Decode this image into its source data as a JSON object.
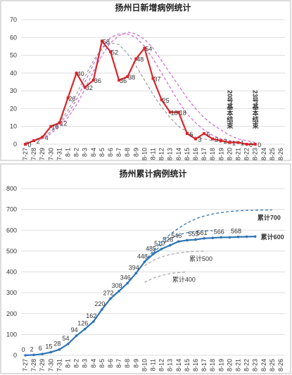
{
  "chart_data": [
    {
      "type": "line",
      "title": "扬州日新增病例统计",
      "categories": [
        "7-27",
        "7-28",
        "7-29",
        "7-30",
        "7-31",
        "8-1",
        "8-2",
        "8-3",
        "8-4",
        "8-5",
        "8-6",
        "8-7",
        "8-8",
        "8-9",
        "8-10",
        "8-11",
        "8-12",
        "8-13",
        "8-14",
        "8-15",
        "8-16",
        "8-17",
        "8-18",
        "8-19",
        "8-20",
        "8-21",
        "8-22",
        "8-23",
        "8-24",
        "8-25",
        "8-26"
      ],
      "ylim": [
        0,
        70
      ],
      "yticks": [
        0,
        10,
        20,
        30,
        40,
        50,
        60,
        70
      ],
      "grid": true,
      "series": [
        {
          "color": "#d9262b",
          "style": "solid",
          "marker": "square",
          "values": [
            0,
            2,
            4,
            10,
            12,
            26,
            40,
            32,
            36,
            58,
            52,
            36,
            38,
            48,
            54,
            37,
            25,
            18,
            18,
            6,
            3,
            6,
            3,
            2,
            1,
            1,
            0,
            0,
            null,
            null,
            null
          ]
        }
      ],
      "trend_lines": [
        {
          "color": "#cc66cc",
          "values": [
            1,
            2,
            4,
            7,
            11,
            17,
            25,
            35,
            45,
            54,
            60,
            62,
            62,
            60,
            55,
            48,
            40,
            32,
            24,
            17,
            12,
            8,
            5,
            3,
            2,
            1,
            null,
            null,
            null,
            null,
            null
          ]
        },
        {
          "color": "#cc66cc",
          "values": [
            1,
            2,
            3,
            6,
            10,
            15,
            22,
            31,
            41,
            50,
            57,
            61,
            63,
            62,
            59,
            54,
            47,
            40,
            33,
            26,
            20,
            15,
            11,
            8,
            5,
            3,
            2,
            1,
            null,
            null,
            null
          ]
        },
        {
          "color": "#999999",
          "values": [
            1,
            2,
            4,
            7,
            12,
            19,
            28,
            38,
            47,
            54,
            57,
            56,
            51,
            44,
            36,
            28,
            21,
            15,
            10,
            7,
            4,
            3,
            2,
            1,
            null,
            null,
            null,
            null,
            null,
            null,
            null
          ]
        }
      ],
      "annotations": [
        {
          "text": "20号基本结束",
          "x": "8-20"
        },
        {
          "text": "23号基本结束",
          "x": "8-23"
        }
      ]
    },
    {
      "type": "line",
      "title": "扬州累计病例统计",
      "categories": [
        "7-27",
        "7-28",
        "7-29",
        "7-30",
        "7-31",
        "8-1",
        "8-2",
        "8-3",
        "8-4",
        "8-5",
        "8-6",
        "8-7",
        "8-8",
        "8-9",
        "8-10",
        "8-11",
        "8-12",
        "8-13",
        "8-14",
        "8-15",
        "8-16",
        "8-17",
        "8-18",
        "8-19",
        "8-20",
        "8-21",
        "8-22",
        "8-23",
        "8-24",
        "8-25",
        "8-26"
      ],
      "ylim": [
        0,
        800
      ],
      "yticks": [
        0,
        100,
        200,
        300,
        400,
        500,
        600,
        700,
        800
      ],
      "grid": true,
      "series": [
        {
          "name": "累计600",
          "color": "#2e75b6",
          "style": "solid",
          "marker": "circle",
          "values": [
            0,
            2,
            6,
            15,
            28,
            54,
            94,
            126,
            162,
            220,
            272,
            308,
            346,
            394,
            448,
            485,
            510,
            528,
            546,
            552,
            555,
            561,
            563,
            566,
            566,
            568,
            569,
            570,
            null,
            null,
            null
          ],
          "value_labels": [
            "0",
            "2",
            "6",
            "15",
            "28",
            "54",
            "94",
            "126",
            "162",
            "220",
            "272",
            "308",
            "346",
            "394",
            "448",
            "485",
            "510",
            "528",
            "546",
            null,
            "555",
            "561",
            null,
            "566",
            null,
            "568",
            null,
            null,
            null,
            null,
            null
          ]
        },
        {
          "name": "累计700",
          "color": "#2e75b6",
          "style": "dashed",
          "values": [
            null,
            null,
            null,
            null,
            null,
            null,
            null,
            null,
            null,
            null,
            null,
            null,
            null,
            null,
            450,
            500,
            545,
            580,
            610,
            635,
            655,
            668,
            678,
            685,
            690,
            693,
            695,
            696,
            697,
            697,
            null
          ]
        },
        {
          "name": "累计500",
          "color": "#aaaaaa",
          "style": "dashed",
          "values": [
            null,
            null,
            null,
            null,
            null,
            null,
            null,
            null,
            null,
            null,
            null,
            null,
            null,
            null,
            430,
            455,
            472,
            484,
            491,
            496,
            499,
            500,
            null,
            null,
            null,
            null,
            null,
            null,
            null,
            null,
            null
          ]
        },
        {
          "name": "累计400",
          "color": "#aaaaaa",
          "style": "dashed",
          "values": [
            null,
            null,
            null,
            null,
            null,
            null,
            null,
            null,
            null,
            null,
            null,
            null,
            null,
            null,
            350,
            370,
            383,
            392,
            397,
            400,
            null,
            null,
            null,
            null,
            null,
            null,
            null,
            null,
            null,
            null,
            null
          ]
        }
      ],
      "trend_lines": [
        {
          "color": "#2e75b6",
          "values": [
            null,
            null,
            null,
            null,
            null,
            null,
            null,
            null,
            null,
            null,
            null,
            null,
            null,
            null,
            null,
            490,
            530,
            560,
            578,
            588,
            594,
            597,
            598,
            null,
            null,
            null,
            null,
            null,
            null,
            null,
            null
          ]
        }
      ]
    }
  ]
}
